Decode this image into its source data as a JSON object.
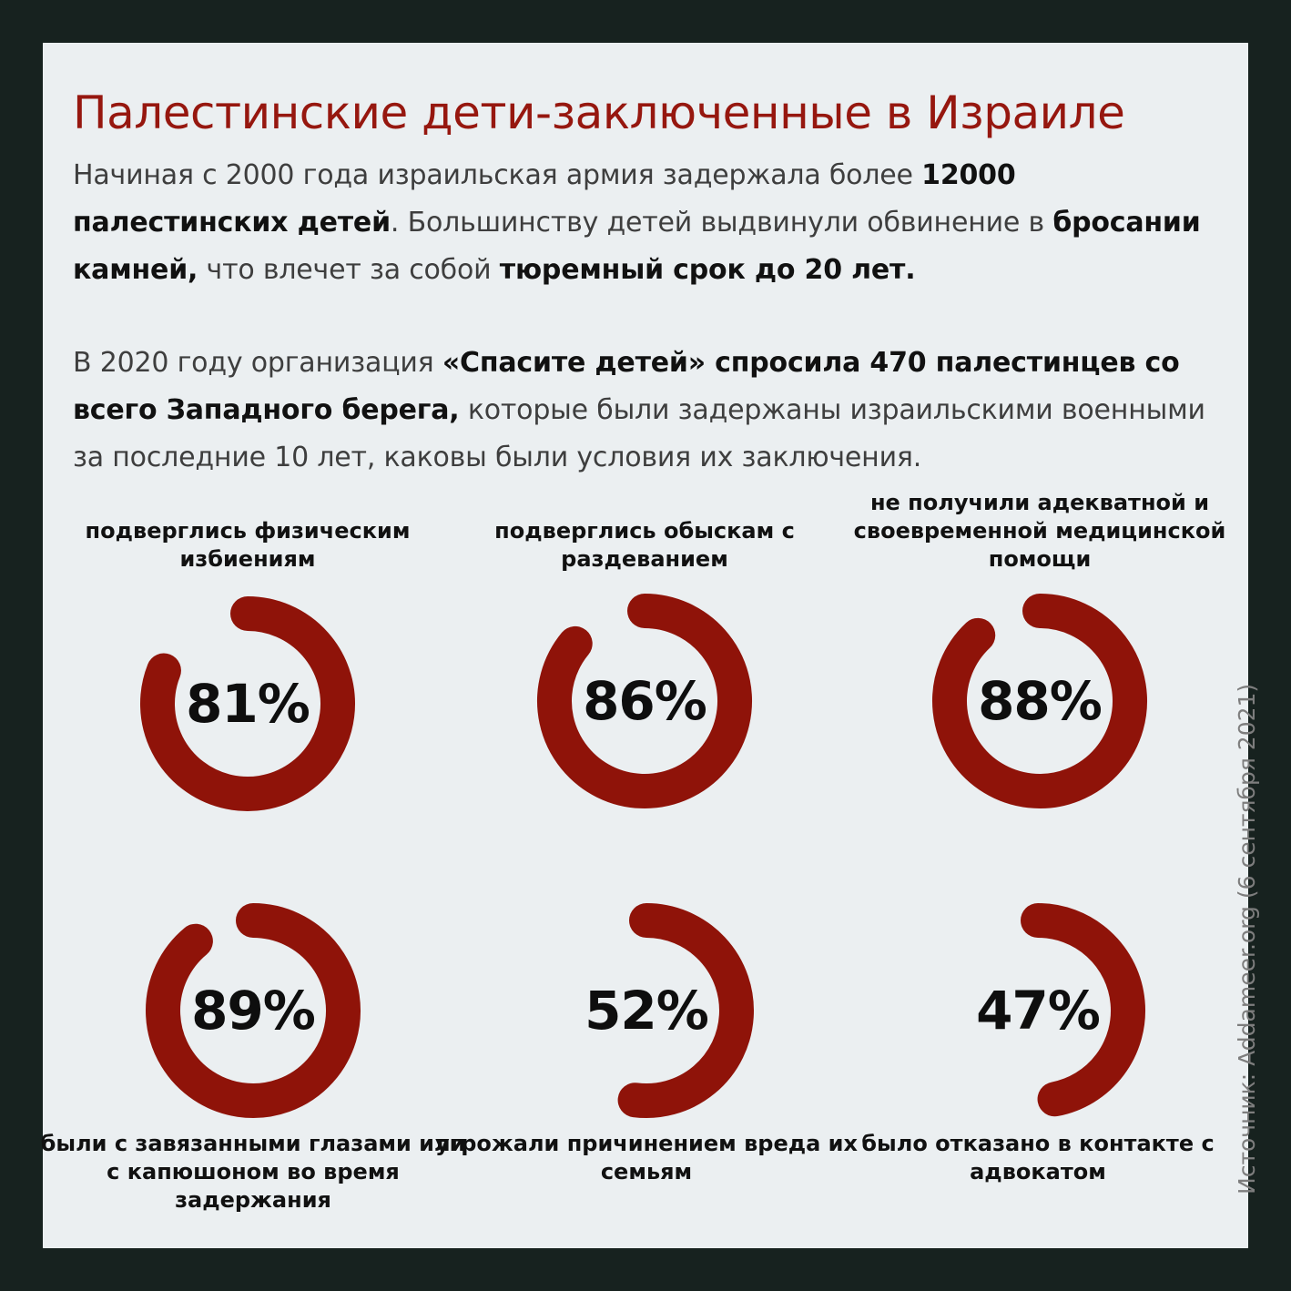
{
  "title": "Палестинские дети-заключенные в Израиле",
  "intro": [
    {
      "text": "Начиная с 2000 года израильская армия задержала более ",
      "bold": false
    },
    {
      "text": "12000 палестинских детей",
      "bold": true
    },
    {
      "text": ". Большинству детей выдвинули обвинение в ",
      "bold": false
    },
    {
      "text": "бросании камней,",
      "bold": true
    },
    {
      "text": " что влечет за собой ",
      "bold": false
    },
    {
      "text": "тюремный срок до 20 лет.",
      "bold": true
    }
  ],
  "survey": [
    {
      "text": "В 2020 году организация  ",
      "bold": false
    },
    {
      "text": "«Спасите детей» спросила 470 палестинцев со всего Западного берега,",
      "bold": true
    },
    {
      "text": " которые были задержаны израильскими военными за последние 10 лет, каковы были условия их заключения.",
      "bold": false
    }
  ],
  "source": "Источник: Addameer.org (6 сентября 2021)",
  "colors": {
    "ring": "#8f1309",
    "accent": "#96170f",
    "background": "#ebeff1",
    "frame": "#17221f"
  },
  "chart_data": {
    "type": "donut",
    "unit": "%",
    "items": [
      {
        "label": "подверглись физическим избиениям",
        "value": 81,
        "display": "81%"
      },
      {
        "label": "подверглись обыскам с раздеванием",
        "value": 86,
        "display": "86%"
      },
      {
        "label": "не получили адекватной и своевременной медицинской помощи",
        "value": 88,
        "display": "88%"
      },
      {
        "label": "были с завязанными глазами или с капюшоном во время задержания",
        "value": 89,
        "display": "89%"
      },
      {
        "label": "угрожали причинением вреда их семьям",
        "value": 52,
        "display": "52%"
      },
      {
        "label": "было отказано в контакте с адвокатом",
        "value": 47,
        "display": "47%"
      }
    ]
  }
}
